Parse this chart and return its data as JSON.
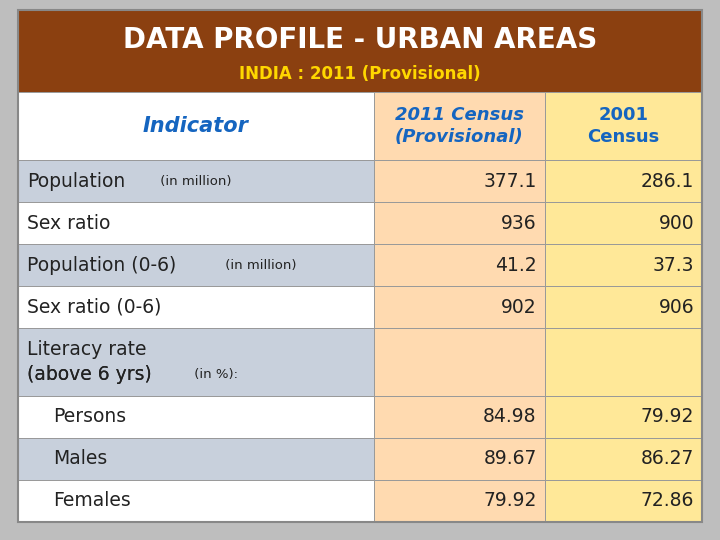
{
  "title_line1": "DATA PROFILE - URBAN AREAS",
  "title_line2": "INDIA : 2011 (Provisional)",
  "title_bg_color": "#8B4010",
  "title_text_color1": "#FFFFFF",
  "title_text_color2": "#FFD700",
  "header_indicator": "Indicator",
  "header_col1": "2011 Census\n(Provisional)",
  "header_col2": "2001\nCensus",
  "header_indicator_color": "#1565C0",
  "header_col_color": "#1565C0",
  "col1_header_bg": "#FFDAB0",
  "col2_header_bg": "#FFE898",
  "col1_bg": "#FFDAB0",
  "col2_bg": "#FFE898",
  "rows": [
    {
      "label": "Population",
      "suffix": " (in million)",
      "suffix_small": true,
      "val1": "377.1",
      "val2": "286.1",
      "indent": false,
      "multiline": false
    },
    {
      "label": "Sex ratio",
      "suffix": "",
      "suffix_small": false,
      "val1": "936",
      "val2": "900",
      "indent": false,
      "multiline": false
    },
    {
      "label": "Population (0-6)",
      "suffix": " (in million)",
      "suffix_small": true,
      "val1": "41.2",
      "val2": "37.3",
      "indent": false,
      "multiline": false
    },
    {
      "label": "Sex ratio (0-6)",
      "suffix": "",
      "suffix_small": false,
      "val1": "902",
      "val2": "906",
      "indent": false,
      "multiline": false
    },
    {
      "label": "Literacy rate",
      "label2": "(above 6 yrs)",
      "suffix": " (in %):",
      "suffix_small": true,
      "val1": "",
      "val2": "",
      "indent": false,
      "multiline": true
    },
    {
      "label": "Persons",
      "suffix": "",
      "suffix_small": false,
      "val1": "84.98",
      "val2": "79.92",
      "indent": true,
      "multiline": false
    },
    {
      "label": "Males",
      "suffix": "",
      "suffix_small": false,
      "val1": "89.67",
      "val2": "86.27",
      "indent": true,
      "multiline": false
    },
    {
      "label": "Females",
      "suffix": "",
      "suffix_small": false,
      "val1": "79.92",
      "val2": "72.86",
      "indent": true,
      "multiline": false
    }
  ],
  "row_bg_colors": [
    "#C8D0DC",
    "#FFFFFF",
    "#C8D0DC",
    "#FFFFFF",
    "#C8D0DC",
    "#FFFFFF",
    "#C8D0DC",
    "#FFFFFF"
  ],
  "text_color": "#222222",
  "fig_bg": "#BEBEBE",
  "border_color": "#999999"
}
